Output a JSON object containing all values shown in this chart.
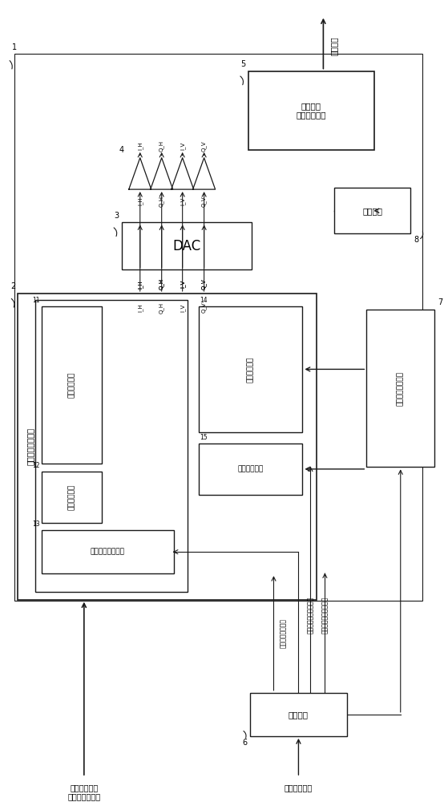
{
  "bg": "#ffffff",
  "lc": "#1a1a1a",
  "figsize": [
    5.54,
    10.0
  ],
  "dpi": 100,
  "labels": {
    "sys2": "数字信号处理电路",
    "b11": "纠错编码电路",
    "b12": "代码映射电路",
    "b13": "载波频率调节电路",
    "b14": "偏振调节电路",
    "b15": "振幅调节电路",
    "dac": "DAC",
    "mod": "偏振复用\n正交光调制器",
    "light": "发送光源",
    "drive": "叠加调制驱动电路",
    "ctrl": "控制电路",
    "out": "发送输出",
    "inp": "主信号数据串\n（高速电信号）",
    "sig_set": "信号处理设置信号",
    "ctrl_detail": "控制处理详情通知信号",
    "ctrl_start": "控制开始定时通知信号",
    "sw_cmd": "处理切换命令",
    "sigs": [
      "I_H",
      "Q_H",
      "I_V",
      "Q_V"
    ]
  }
}
